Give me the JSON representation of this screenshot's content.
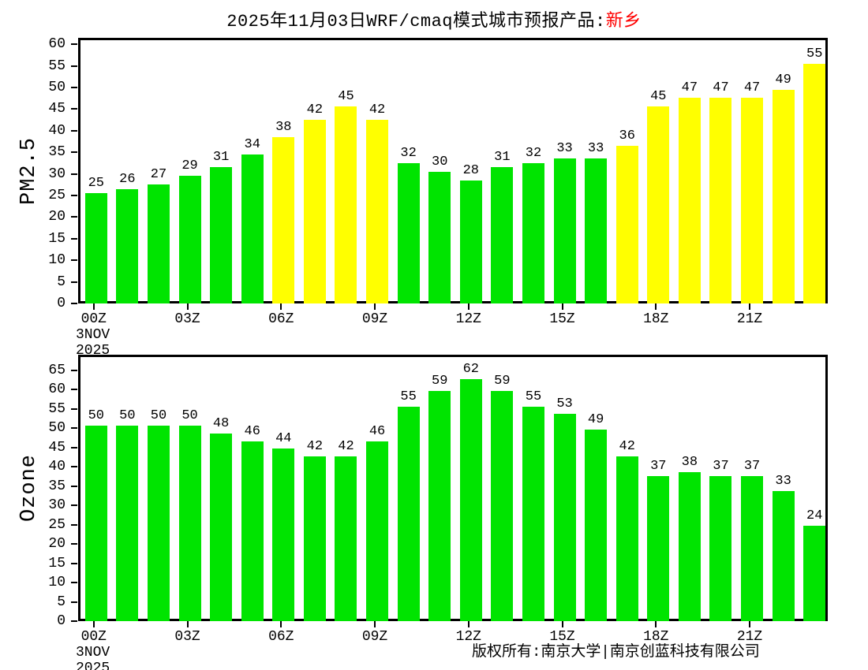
{
  "title": {
    "text": "2025年11月03日WRF/cmaq模式城市预报产品:",
    "city": "新乡",
    "city_color": "#ff0000"
  },
  "footer": {
    "copyright": "版权所有:南京大学|南京创蓝科技有限公司"
  },
  "colors": {
    "green": "#00e400",
    "yellow": "#ffff00",
    "axis": "#000000",
    "background": "#ffffff"
  },
  "chart_data": [
    {
      "type": "bar",
      "ylabel": "PM2.5",
      "values": [
        25,
        26,
        27,
        29,
        31,
        34,
        38,
        42,
        45,
        42,
        32,
        30,
        28,
        31,
        32,
        33,
        33,
        36,
        45,
        47,
        47,
        47,
        49,
        55
      ],
      "bar_colors": [
        "#00e400",
        "#00e400",
        "#00e400",
        "#00e400",
        "#00e400",
        "#00e400",
        "#ffff00",
        "#ffff00",
        "#ffff00",
        "#ffff00",
        "#00e400",
        "#00e400",
        "#00e400",
        "#00e400",
        "#00e400",
        "#00e400",
        "#00e400",
        "#ffff00",
        "#ffff00",
        "#ffff00",
        "#ffff00",
        "#ffff00",
        "#ffff00",
        "#ffff00"
      ],
      "yticks": [
        0,
        5,
        10,
        15,
        20,
        25,
        30,
        35,
        40,
        45,
        50,
        55,
        60
      ],
      "ylim": [
        0,
        61.5
      ],
      "xtick_indices": [
        0,
        3,
        6,
        9,
        12,
        15,
        18,
        21
      ],
      "xtick_labels": [
        "00Z",
        "03Z",
        "06Z",
        "09Z",
        "12Z",
        "15Z",
        "18Z",
        "21Z"
      ],
      "x_date_lines": [
        "3NOV",
        "2025"
      ],
      "grid": false,
      "legend": "none"
    },
    {
      "type": "bar",
      "ylabel": "Ozone",
      "values": [
        50,
        50,
        50,
        50,
        48,
        46,
        44,
        42,
        42,
        46,
        55,
        59,
        62,
        59,
        55,
        53,
        49,
        42,
        37,
        38,
        37,
        37,
        33,
        24
      ],
      "bar_colors": [
        "#00e400",
        "#00e400",
        "#00e400",
        "#00e400",
        "#00e400",
        "#00e400",
        "#00e400",
        "#00e400",
        "#00e400",
        "#00e400",
        "#00e400",
        "#00e400",
        "#00e400",
        "#00e400",
        "#00e400",
        "#00e400",
        "#00e400",
        "#00e400",
        "#00e400",
        "#00e400",
        "#00e400",
        "#00e400",
        "#00e400",
        "#00e400"
      ],
      "yticks": [
        0,
        5,
        10,
        15,
        20,
        25,
        30,
        35,
        40,
        45,
        50,
        55,
        60,
        65
      ],
      "ylim": [
        0,
        69
      ],
      "xtick_indices": [
        0,
        3,
        6,
        9,
        12,
        15,
        18,
        21
      ],
      "xtick_labels": [
        "00Z",
        "03Z",
        "06Z",
        "09Z",
        "12Z",
        "15Z",
        "18Z",
        "21Z"
      ],
      "x_date_lines": [
        "3NOV",
        "2025"
      ],
      "grid": false,
      "legend": "none"
    }
  ]
}
